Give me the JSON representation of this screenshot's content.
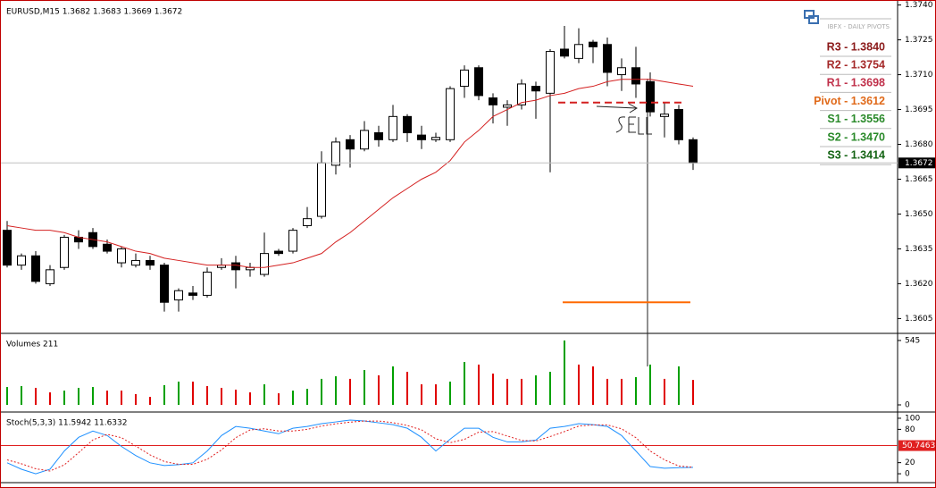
{
  "chart_data": [
    {
      "type": "candlestick",
      "title": "EURUSD,M15  1.3682 1.3683 1.3669 1.3672",
      "up_color": "#ffffff",
      "down_color": "#000000",
      "open": [
        1.3643,
        1.3628,
        1.3632,
        1.362,
        1.3627,
        1.364,
        1.3642,
        1.3637,
        1.3629,
        1.3628,
        1.363,
        1.3628,
        1.3613,
        1.3616,
        1.3615,
        1.3627,
        1.3629,
        1.3626,
        1.3624,
        1.3634,
        1.3634,
        1.3645,
        1.3649,
        1.3671,
        1.3682,
        1.3678,
        1.3685,
        1.3682,
        1.3692,
        1.3684,
        1.3682,
        1.3682,
        1.3705,
        1.3713,
        1.37,
        1.3696,
        1.3697,
        1.3705,
        1.3702,
        1.3721,
        1.3717,
        1.3724,
        1.3723,
        1.371,
        1.3713,
        1.3707,
        1.3692,
        1.3695,
        1.3682
      ],
      "high": [
        1.3647,
        1.3633,
        1.3634,
        1.3628,
        1.3641,
        1.3643,
        1.3644,
        1.3639,
        1.3636,
        1.3633,
        1.3632,
        1.3629,
        1.3618,
        1.3619,
        1.3627,
        1.3631,
        1.3632,
        1.3629,
        1.3642,
        1.3635,
        1.3644,
        1.3653,
        1.3677,
        1.3683,
        1.3684,
        1.369,
        1.3688,
        1.3697,
        1.3693,
        1.3688,
        1.3685,
        1.3705,
        1.3714,
        1.3714,
        1.3702,
        1.3699,
        1.3708,
        1.3707,
        1.3721,
        1.3731,
        1.373,
        1.3725,
        1.3726,
        1.3717,
        1.3722,
        1.3711,
        1.3698,
        1.3697,
        1.3683
      ],
      "low": [
        1.3627,
        1.3626,
        1.362,
        1.3619,
        1.3626,
        1.3635,
        1.3635,
        1.3633,
        1.3627,
        1.3627,
        1.3626,
        1.3608,
        1.3608,
        1.3613,
        1.3614,
        1.3626,
        1.3618,
        1.3623,
        1.3623,
        1.3632,
        1.3633,
        1.3644,
        1.3648,
        1.3667,
        1.367,
        1.3677,
        1.3679,
        1.3681,
        1.3681,
        1.3678,
        1.3681,
        1.3681,
        1.37,
        1.3699,
        1.3689,
        1.3688,
        1.3695,
        1.3691,
        1.3668,
        1.3717,
        1.3715,
        1.3715,
        1.3705,
        1.3703,
        1.37,
        1.3692,
        1.3683,
        1.368,
        1.3669
      ],
      "close": [
        1.3628,
        1.3632,
        1.3621,
        1.3626,
        1.364,
        1.3638,
        1.3636,
        1.3634,
        1.3635,
        1.363,
        1.3628,
        1.3612,
        1.3617,
        1.3615,
        1.3625,
        1.3628,
        1.3626,
        1.3627,
        1.3633,
        1.3633,
        1.3643,
        1.3648,
        1.3672,
        1.3681,
        1.3678,
        1.3686,
        1.3682,
        1.3692,
        1.3685,
        1.3682,
        1.3683,
        1.3704,
        1.3712,
        1.3701,
        1.3697,
        1.3697,
        1.3706,
        1.3703,
        1.372,
        1.3718,
        1.3723,
        1.3722,
        1.3711,
        1.3713,
        1.3706,
        1.3694,
        1.3693,
        1.3682,
        1.3672
      ],
      "ma": {
        "color": "#d42020",
        "values": [
          1.3645,
          1.3644,
          1.3643,
          1.3643,
          1.3642,
          1.364,
          1.3639,
          1.3638,
          1.3636,
          1.3634,
          1.3633,
          1.3631,
          1.363,
          1.3629,
          1.3628,
          1.3628,
          1.3628,
          1.3627,
          1.3627,
          1.3628,
          1.3629,
          1.3631,
          1.3633,
          1.3638,
          1.3642,
          1.3647,
          1.3652,
          1.3657,
          1.3661,
          1.3665,
          1.3668,
          1.3673,
          1.3681,
          1.3686,
          1.3692,
          1.3695,
          1.3698,
          1.3699,
          1.3701,
          1.3702,
          1.3704,
          1.3705,
          1.3707,
          1.3708,
          1.3708,
          1.3708,
          1.3707,
          1.3706,
          1.3705
        ]
      },
      "ylim": [
        1.3599,
        1.3741
      ],
      "yticks": [
        {
          "value": 1.374,
          "label": "1.3740"
        },
        1.3725,
        {
          "value": 1.371,
          "label": "1.3710"
        },
        1.3695,
        {
          "value": 1.368,
          "label": "1.3680"
        },
        1.3665,
        {
          "value": 1.365,
          "label": "1.3650"
        },
        1.3635,
        {
          "value": 1.362,
          "label": "1.3620"
        },
        1.3605
      ],
      "last_price": 1.3672,
      "lines": [
        {
          "value": 1.3612,
          "color": "#ff6a00",
          "dash": false
        },
        {
          "value": 1.3698,
          "color": "#d42020",
          "dash": true
        }
      ],
      "legend_title": "IBFX - DAILY PIVOTS",
      "levels": [
        {
          "label": "R3 - 1.3840",
          "color": "#8b1a1a"
        },
        {
          "label": "R2 - 1.3754",
          "color": "#a52a2a"
        },
        {
          "label": "R1 - 1.3698",
          "color": "#c0304a"
        },
        {
          "label": "Pivot - 1.3612",
          "color": "#e06a1a"
        },
        {
          "label": "S1 - 1.3556",
          "color": "#2a8a2a"
        },
        {
          "label": "S2 - 1.3470",
          "color": "#2a8a2a"
        },
        {
          "label": "S3 - 1.3414",
          "color": "#146414"
        }
      ]
    },
    {
      "type": "bar",
      "title": "Volumes 211",
      "up_color": "#00a000",
      "down_color": "#e00000",
      "values": [
        151,
        159,
        144,
        106,
        121,
        144,
        151,
        121,
        121,
        91,
        68,
        167,
        197,
        197,
        159,
        144,
        129,
        106,
        174,
        98,
        121,
        136,
        220,
        242,
        220,
        295,
        250,
        326,
        280,
        174,
        174,
        197,
        363,
        341,
        265,
        220,
        220,
        250,
        280,
        545,
        341,
        326,
        220,
        220,
        235,
        341,
        220,
        326,
        211
      ],
      "ylim": [
        -53,
        590
      ],
      "yticks": [
        0,
        545
      ]
    },
    {
      "type": "line",
      "title": "Stoch(5,3,3) 11.5942 11.6332",
      "series": [
        {
          "color": "#1e90ff",
          "dash": false,
          "values": [
            19.7,
            8.2,
            0,
            8.2,
            41,
            65.6,
            77,
            68.9,
            49.2,
            32.8,
            19.7,
            14.8,
            16.4,
            19.7,
            41,
            68.9,
            85.2,
            82,
            77,
            72.1,
            82,
            85.2,
            90.2,
            93.4,
            96.7,
            95.1,
            91.8,
            88.5,
            82,
            65.6,
            41,
            62.3,
            82,
            82,
            65.6,
            57.4,
            57.4,
            60.7,
            82,
            85.2,
            90.2,
            88.5,
            85.2,
            68.9,
            41,
            13,
            10,
            11,
            11.5942
          ]
        },
        {
          "color": "#e02020",
          "dash": true,
          "values": [
            25,
            18,
            9,
            5,
            16,
            38,
            61,
            71,
            65,
            50,
            34,
            22,
            17,
            17,
            26,
            43,
            65,
            79,
            81,
            77,
            77,
            80,
            86,
            90,
            93,
            95,
            95,
            92,
            87,
            79,
            63,
            56,
            62,
            75,
            76,
            68,
            60,
            59,
            67,
            76,
            86,
            88,
            88,
            81,
            65,
            41,
            25,
            14,
            11.6332
          ]
        }
      ],
      "level": 50.7463,
      "level_color": "#e02020",
      "ylim": [
        -16,
        108
      ],
      "yticks": [
        0,
        20,
        80,
        100
      ]
    }
  ]
}
